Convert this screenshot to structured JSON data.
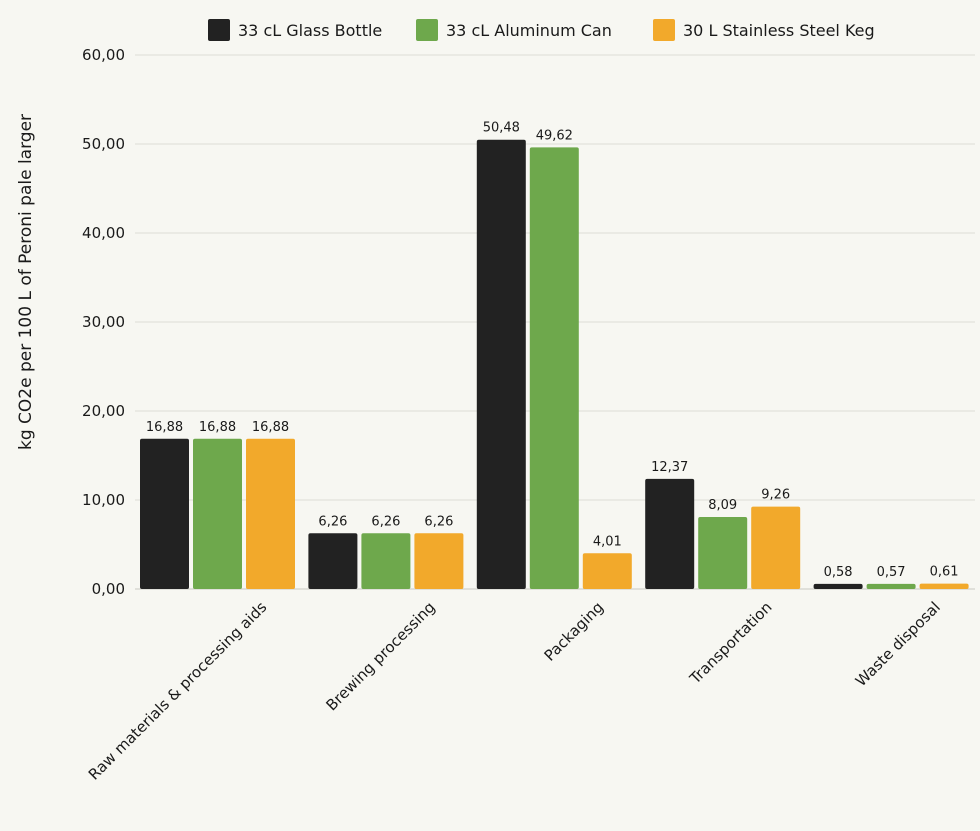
{
  "chart_data": {
    "type": "bar",
    "title": "",
    "xlabel": "",
    "ylabel": "kg CO2e per 100 L of  Peroni pale larger",
    "ylim": [
      0,
      60
    ],
    "yticks": [
      0,
      10,
      20,
      30,
      40,
      50,
      60
    ],
    "ytick_labels": [
      "0,00",
      "10,00",
      "20,00",
      "30,00",
      "40,00",
      "50,00",
      "60,00"
    ],
    "grid": true,
    "legend_position": "top",
    "categories": [
      "Raw materials & processing aids",
      "Brewing processing",
      "Packaging",
      "Transportation",
      "Waste disposal"
    ],
    "series": [
      {
        "name": "33 cL Glass Bottle",
        "color": "#222222",
        "values": [
          16.88,
          6.26,
          50.48,
          12.37,
          0.58
        ],
        "labels": [
          "16,88",
          "6,26",
          "50,48",
          "12,37",
          "0,58"
        ]
      },
      {
        "name": "33 cL Aluminum Can",
        "color": "#6ea84c",
        "values": [
          16.88,
          6.26,
          49.62,
          8.09,
          0.57
        ],
        "labels": [
          "16,88",
          "6,26",
          "49,62",
          "8,09",
          "0,57"
        ]
      },
      {
        "name": "30 L Stainless Steel Keg",
        "color": "#f2a92b",
        "values": [
          16.88,
          6.26,
          4.01,
          9.26,
          0.61
        ],
        "labels": [
          "16,88",
          "6,26",
          "4,01",
          "9,26",
          "0,61"
        ]
      }
    ]
  }
}
